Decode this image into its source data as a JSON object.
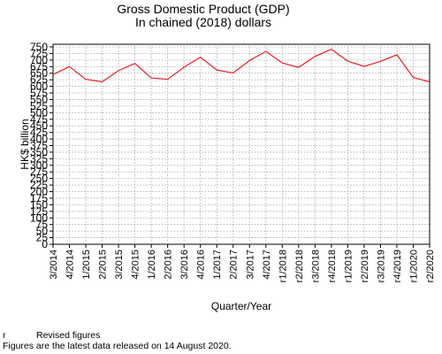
{
  "chart_data": {
    "type": "line",
    "title": "Gross Domestic Product (GDP)",
    "subtitle": "In chained (2018) dollars",
    "xlabel": "Quarter/Year",
    "ylabel": "HK$ billion",
    "ylim": [
      0,
      760
    ],
    "yticks": [
      0,
      25,
      50,
      75,
      100,
      125,
      150,
      175,
      200,
      225,
      250,
      275,
      300,
      325,
      350,
      375,
      400,
      425,
      450,
      475,
      500,
      525,
      550,
      575,
      600,
      625,
      650,
      675,
      700,
      725,
      750
    ],
    "grid": true,
    "line_color": "#e8202a",
    "categories": [
      "3/2014",
      "4/2014",
      "1/2015",
      "2/2015",
      "3/2015",
      "4/2015",
      "1/2016",
      "2/2016",
      "3/2016",
      "4/2016",
      "1/2017",
      "2/2017",
      "3/2017",
      "4/2017",
      "r1/2018",
      "r2/2018",
      "r3/2018",
      "r4/2018",
      "r1/2019",
      "r2/2019",
      "r3/2019",
      "r4/2019",
      "r1/2020",
      "r2/2020"
    ],
    "values": [
      645,
      675,
      627,
      617,
      660,
      687,
      632,
      627,
      673,
      711,
      662,
      651,
      698,
      733,
      689,
      672,
      714,
      741,
      696,
      676,
      695,
      720,
      634,
      617
    ]
  },
  "notes": {
    "revised_key": "r",
    "revised_text": "Revised figures",
    "release": "Figures are the latest data released on 14 August 2020."
  }
}
